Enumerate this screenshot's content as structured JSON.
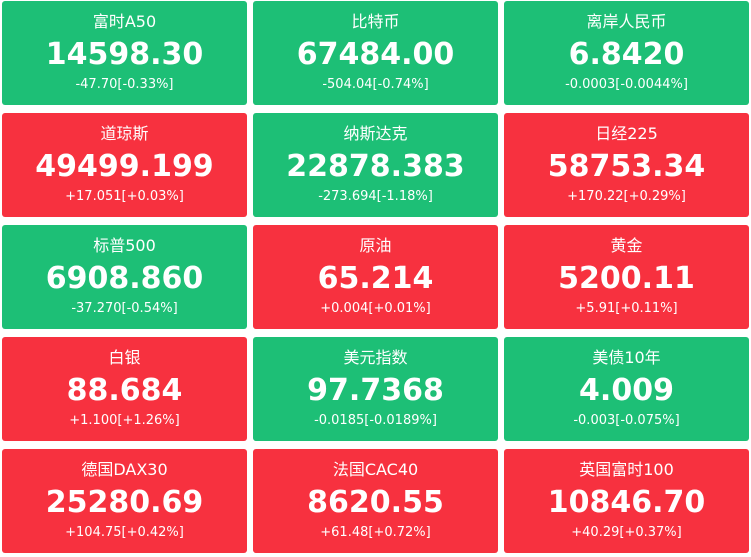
{
  "tiles": [
    {
      "name": "富时A50",
      "price": "14598.30",
      "change": "-47.70[-0.33%]",
      "color": "#1dbf76"
    },
    {
      "name": "比特币",
      "price": "67484.00",
      "change": "-504.04[-0.74%]",
      "color": "#1dbf76"
    },
    {
      "name": "离岸人民币",
      "price": "6.8420",
      "change": "-0.0003[-0.0044%]",
      "color": "#1dbf76"
    },
    {
      "name": "道琼斯",
      "price": "49499.199",
      "change": "+17.051[+0.03%]",
      "color": "#f7313f"
    },
    {
      "name": "纳斯达克",
      "price": "22878.383",
      "change": "-273.694[-1.18%]",
      "color": "#1dbf76"
    },
    {
      "name": "日经225",
      "price": "58753.34",
      "change": "+170.22[+0.29%]",
      "color": "#f7313f"
    },
    {
      "name": "标普500",
      "price": "6908.860",
      "change": "-37.270[-0.54%]",
      "color": "#1dbf76"
    },
    {
      "name": "原油",
      "price": "65.214",
      "change": "+0.004[+0.01%]",
      "color": "#f7313f"
    },
    {
      "name": "黄金",
      "price": "5200.11",
      "change": "+5.91[+0.11%]",
      "color": "#f7313f"
    },
    {
      "name": "白银",
      "price": "88.684",
      "change": "+1.100[+1.26%]",
      "color": "#f7313f"
    },
    {
      "name": "美元指数",
      "price": "97.7368",
      "change": "-0.0185[-0.0189%]",
      "color": "#1dbf76"
    },
    {
      "name": "美债10年",
      "price": "4.009",
      "change": "-0.003[-0.075%]",
      "color": "#1dbf76"
    },
    {
      "name": "德国DAX30",
      "price": "25280.69",
      "change": "+104.75[+0.42%]",
      "color": "#f7313f"
    },
    {
      "name": "法国CAC40",
      "price": "8620.55",
      "change": "+61.48[+0.72%]",
      "color": "#f7313f"
    },
    {
      "name": "英国富时100",
      "price": "10846.70",
      "change": "+40.29[+0.37%]",
      "color": "#f7313f"
    }
  ]
}
